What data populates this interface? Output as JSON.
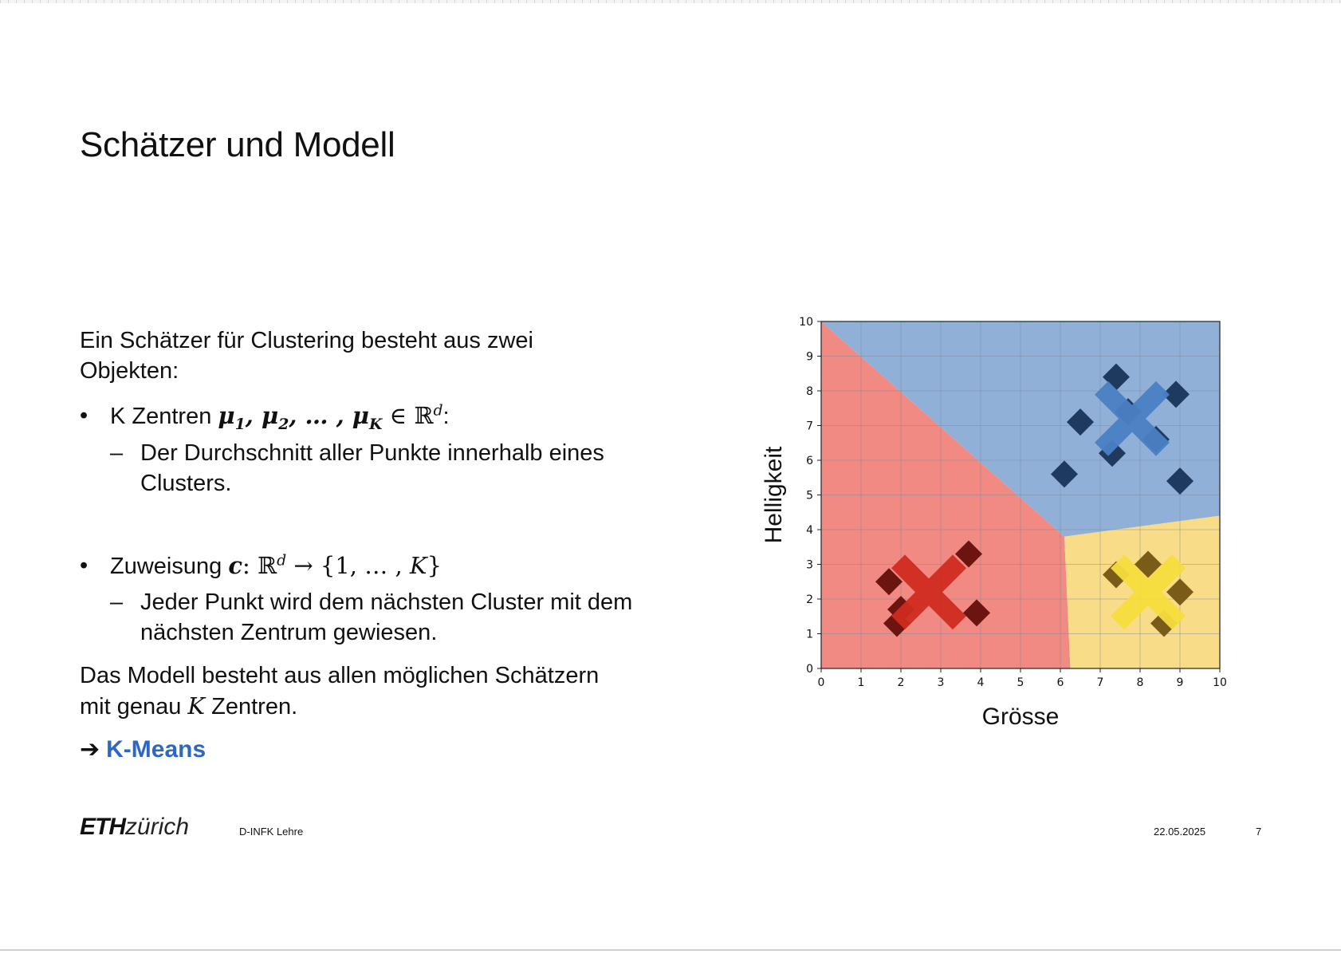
{
  "slide": {
    "title": "Schätzer und Modell",
    "intro": "Ein Schätzer für Clustering besteht aus zwei Objekten:",
    "bullet1": {
      "lead": "K Zentren ",
      "math": "μ₁, μ₂, … , μ_K ∈ ℝ^d",
      "trail": ":",
      "sub": "Der Durchschnitt aller Punkte innerhalb eines Clusters."
    },
    "bullet2": {
      "lead": "Zuweisung ",
      "math": "c: ℝ^d → {1, … , K}",
      "sub": "Jeder Punkt wird dem nächsten Cluster mit dem nächsten Zentrum gewiesen."
    },
    "model_line1": "Das Modell besteht aus allen möglichen Schätzern",
    "model_line2_pre": "mit genau ",
    "model_line2_k": "K",
    "model_line2_post": " Zentren.",
    "arrow": "➔",
    "kmeans": "K-Means"
  },
  "footer": {
    "logo_bold": "ETH",
    "logo_rest": "zürich",
    "dept": "D-INFK Lehre",
    "date": "22.05.2025",
    "page": "7"
  },
  "colors": {
    "link": "#2e66c4",
    "region_red": "#f08a82",
    "region_blue": "#90b0d8",
    "region_yellow": "#f8dc88"
  },
  "chart_data": {
    "type": "scatter",
    "xlabel": "Grösse",
    "ylabel": "Helligkeit",
    "xlim": [
      0,
      10
    ],
    "ylim": [
      0,
      10
    ],
    "xticks": [
      0,
      1,
      2,
      3,
      4,
      5,
      6,
      7,
      8,
      9,
      10
    ],
    "yticks": [
      0,
      1,
      2,
      3,
      4,
      5,
      6,
      7,
      8,
      9,
      10
    ],
    "grid": true,
    "regions": [
      {
        "cluster": "red",
        "color": "#f08a82",
        "polygon": [
          [
            0,
            0
          ],
          [
            0,
            10
          ],
          [
            6.1,
            3.8
          ],
          [
            6.25,
            0
          ]
        ]
      },
      {
        "cluster": "blue",
        "color": "#90b0d8",
        "polygon": [
          [
            0,
            10
          ],
          [
            10,
            10
          ],
          [
            10,
            4.4
          ],
          [
            6.1,
            3.8
          ]
        ]
      },
      {
        "cluster": "yellow",
        "color": "#f8dc88",
        "polygon": [
          [
            6.1,
            3.8
          ],
          [
            10,
            4.4
          ],
          [
            10,
            0
          ],
          [
            6.25,
            0
          ]
        ]
      }
    ],
    "series": [
      {
        "cluster": "blue",
        "point_color": "#1e3a5f",
        "points": [
          [
            7.4,
            8.4
          ],
          [
            8.9,
            7.9
          ],
          [
            6.5,
            7.1
          ],
          [
            7.7,
            7.4
          ],
          [
            8.4,
            6.6
          ],
          [
            7.3,
            6.2
          ],
          [
            6.1,
            5.6
          ],
          [
            9.0,
            5.4
          ]
        ]
      },
      {
        "cluster": "red",
        "point_color": "#6b1410",
        "points": [
          [
            1.7,
            2.5
          ],
          [
            3.7,
            3.3
          ],
          [
            2.0,
            1.7
          ],
          [
            3.9,
            1.6
          ],
          [
            1.9,
            1.3
          ]
        ]
      },
      {
        "cluster": "yellow",
        "point_color": "#7a5c18",
        "points": [
          [
            7.4,
            2.7
          ],
          [
            8.2,
            3.0
          ],
          [
            9.0,
            2.2
          ],
          [
            8.6,
            1.3
          ]
        ]
      }
    ],
    "centroids": [
      {
        "cluster": "blue",
        "color": "#4a80c4",
        "x": 7.8,
        "y": 7.2
      },
      {
        "cluster": "red",
        "color": "#d02a20",
        "x": 2.7,
        "y": 2.2
      },
      {
        "cluster": "yellow",
        "color": "#f5dc3c",
        "x": 8.2,
        "y": 2.2
      }
    ]
  }
}
